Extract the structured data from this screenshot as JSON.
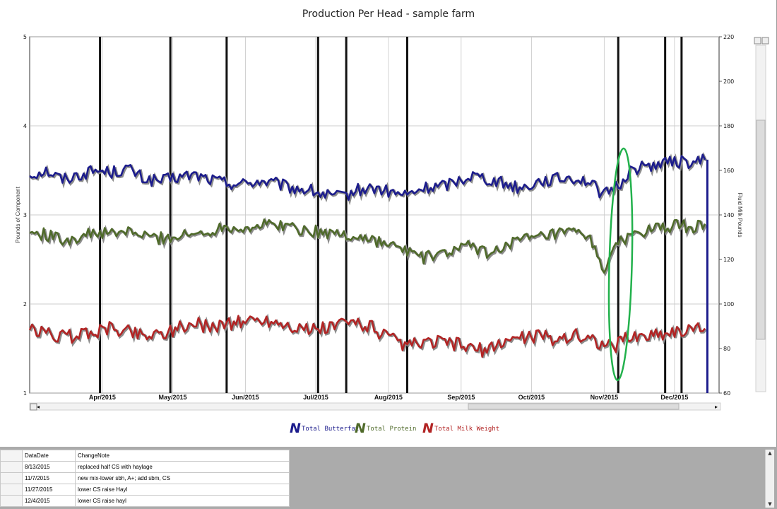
{
  "chart_data": {
    "type": "line",
    "title": "Production Per Head - sample farm",
    "ylabel_left": "Pounds of Component",
    "ylabel_right": "Fluid Milk Pounds",
    "y_left_range": [
      1,
      5
    ],
    "y_right_range": [
      60,
      220
    ],
    "y_left_ticks": [
      "1",
      "2",
      "3",
      "4",
      "5"
    ],
    "y_right_ticks": [
      "60",
      "80",
      "100",
      "120",
      "140",
      "160",
      "180",
      "200",
      "220"
    ],
    "x_range": [
      "2015-03-01",
      "2015-12-20"
    ],
    "x_ticks": [
      {
        "label": "Apr/2015",
        "date": "2015-04-01"
      },
      {
        "label": "May/2015",
        "date": "2015-05-01"
      },
      {
        "label": "Jun/2015",
        "date": "2015-06-01"
      },
      {
        "label": "Jul/2015",
        "date": "2015-07-01"
      },
      {
        "label": "Aug/2015",
        "date": "2015-08-01"
      },
      {
        "label": "Sep/2015",
        "date": "2015-09-01"
      },
      {
        "label": "Oct/2015",
        "date": "2015-10-01"
      },
      {
        "label": "Nov/2015",
        "date": "2015-11-01"
      },
      {
        "label": "Dec/2015",
        "date": "2015-12-01"
      }
    ],
    "grid": true,
    "legend_position": "bottom-center",
    "event_markers": [
      "2015-03-31",
      "2015-04-30",
      "2015-05-24",
      "2015-07-02",
      "2015-07-14",
      "2015-08-09",
      "2015-11-07",
      "2015-11-27",
      "2015-12-04"
    ],
    "series": [
      {
        "name": "Total Butterfat",
        "axis": "left",
        "color": "#1c1c8c",
        "points": [
          [
            "2015-03-01",
            3.45
          ],
          [
            "2015-03-08",
            3.5
          ],
          [
            "2015-03-15",
            3.4
          ],
          [
            "2015-03-22",
            3.45
          ],
          [
            "2015-03-29",
            3.5
          ],
          [
            "2015-04-05",
            3.48
          ],
          [
            "2015-04-12",
            3.52
          ],
          [
            "2015-04-19",
            3.4
          ],
          [
            "2015-04-26",
            3.38
          ],
          [
            "2015-05-03",
            3.42
          ],
          [
            "2015-05-10",
            3.45
          ],
          [
            "2015-05-17",
            3.4
          ],
          [
            "2015-05-24",
            3.36
          ],
          [
            "2015-05-31",
            3.35
          ],
          [
            "2015-06-07",
            3.38
          ],
          [
            "2015-06-14",
            3.35
          ],
          [
            "2015-06-21",
            3.3
          ],
          [
            "2015-06-28",
            3.28
          ],
          [
            "2015-07-05",
            3.22
          ],
          [
            "2015-07-12",
            3.2
          ],
          [
            "2015-07-19",
            3.28
          ],
          [
            "2015-07-26",
            3.3
          ],
          [
            "2015-08-02",
            3.25
          ],
          [
            "2015-08-09",
            3.22
          ],
          [
            "2015-08-16",
            3.3
          ],
          [
            "2015-08-23",
            3.32
          ],
          [
            "2015-08-30",
            3.38
          ],
          [
            "2015-09-06",
            3.45
          ],
          [
            "2015-09-13",
            3.4
          ],
          [
            "2015-09-20",
            3.35
          ],
          [
            "2015-09-27",
            3.3
          ],
          [
            "2015-10-04",
            3.38
          ],
          [
            "2015-10-11",
            3.4
          ],
          [
            "2015-10-18",
            3.42
          ],
          [
            "2015-10-25",
            3.38
          ],
          [
            "2015-11-01",
            3.22
          ],
          [
            "2015-11-05",
            3.3
          ],
          [
            "2015-11-08",
            3.35
          ],
          [
            "2015-11-12",
            3.5
          ],
          [
            "2015-11-19",
            3.55
          ],
          [
            "2015-11-26",
            3.58
          ],
          [
            "2015-12-03",
            3.6
          ],
          [
            "2015-12-10",
            3.58
          ],
          [
            "2015-12-14",
            3.62
          ]
        ]
      },
      {
        "name": "Total Protein",
        "axis": "left",
        "color": "#4f6a2a",
        "points": [
          [
            "2015-03-01",
            2.8
          ],
          [
            "2015-03-08",
            2.78
          ],
          [
            "2015-03-15",
            2.72
          ],
          [
            "2015-03-22",
            2.75
          ],
          [
            "2015-03-29",
            2.8
          ],
          [
            "2015-04-05",
            2.78
          ],
          [
            "2015-04-12",
            2.82
          ],
          [
            "2015-04-19",
            2.76
          ],
          [
            "2015-04-26",
            2.74
          ],
          [
            "2015-05-03",
            2.76
          ],
          [
            "2015-05-10",
            2.78
          ],
          [
            "2015-05-17",
            2.82
          ],
          [
            "2015-05-24",
            2.88
          ],
          [
            "2015-05-31",
            2.85
          ],
          [
            "2015-06-07",
            2.88
          ],
          [
            "2015-06-14",
            2.9
          ],
          [
            "2015-06-21",
            2.86
          ],
          [
            "2015-06-28",
            2.82
          ],
          [
            "2015-07-05",
            2.8
          ],
          [
            "2015-07-12",
            2.78
          ],
          [
            "2015-07-19",
            2.75
          ],
          [
            "2015-07-26",
            2.72
          ],
          [
            "2015-08-02",
            2.65
          ],
          [
            "2015-08-09",
            2.6
          ],
          [
            "2015-08-16",
            2.52
          ],
          [
            "2015-08-23",
            2.55
          ],
          [
            "2015-08-30",
            2.62
          ],
          [
            "2015-09-06",
            2.65
          ],
          [
            "2015-09-13",
            2.55
          ],
          [
            "2015-09-20",
            2.68
          ],
          [
            "2015-09-27",
            2.72
          ],
          [
            "2015-10-04",
            2.74
          ],
          [
            "2015-10-11",
            2.78
          ],
          [
            "2015-10-18",
            2.8
          ],
          [
            "2015-10-25",
            2.76
          ],
          [
            "2015-11-01",
            2.4
          ],
          [
            "2015-11-05",
            2.58
          ],
          [
            "2015-11-08",
            2.7
          ],
          [
            "2015-11-12",
            2.78
          ],
          [
            "2015-11-19",
            2.82
          ],
          [
            "2015-11-26",
            2.85
          ],
          [
            "2015-12-03",
            2.88
          ],
          [
            "2015-12-10",
            2.86
          ],
          [
            "2015-12-14",
            2.9
          ]
        ]
      },
      {
        "name": "Total Milk Weight",
        "axis": "right",
        "color": "#b22424",
        "points": [
          [
            "2015-03-01",
            88
          ],
          [
            "2015-03-08",
            87
          ],
          [
            "2015-03-15",
            85
          ],
          [
            "2015-03-22",
            86
          ],
          [
            "2015-03-29",
            88
          ],
          [
            "2015-04-05",
            89
          ],
          [
            "2015-04-12",
            88
          ],
          [
            "2015-04-19",
            86
          ],
          [
            "2015-04-26",
            87
          ],
          [
            "2015-05-03",
            89
          ],
          [
            "2015-05-10",
            91
          ],
          [
            "2015-05-17",
            90
          ],
          [
            "2015-05-24",
            91
          ],
          [
            "2015-05-31",
            92
          ],
          [
            "2015-06-07",
            93
          ],
          [
            "2015-06-14",
            92
          ],
          [
            "2015-06-21",
            90
          ],
          [
            "2015-06-28",
            88
          ],
          [
            "2015-07-05",
            89
          ],
          [
            "2015-07-12",
            91
          ],
          [
            "2015-07-19",
            92
          ],
          [
            "2015-07-26",
            89
          ],
          [
            "2015-08-02",
            84
          ],
          [
            "2015-08-09",
            81
          ],
          [
            "2015-08-16",
            82
          ],
          [
            "2015-08-23",
            83
          ],
          [
            "2015-08-30",
            82
          ],
          [
            "2015-09-06",
            80
          ],
          [
            "2015-09-13",
            79
          ],
          [
            "2015-09-20",
            84
          ],
          [
            "2015-09-27",
            85
          ],
          [
            "2015-10-04",
            86
          ],
          [
            "2015-10-11",
            84
          ],
          [
            "2015-10-18",
            86
          ],
          [
            "2015-10-25",
            85
          ],
          [
            "2015-11-01",
            82
          ],
          [
            "2015-11-05",
            80
          ],
          [
            "2015-11-08",
            84
          ],
          [
            "2015-11-12",
            85
          ],
          [
            "2015-11-19",
            86
          ],
          [
            "2015-11-26",
            87
          ],
          [
            "2015-12-03",
            88
          ],
          [
            "2015-12-10",
            88
          ],
          [
            "2015-12-14",
            89
          ]
        ]
      }
    ]
  },
  "legend": [
    {
      "label": "Total Butterfat",
      "color": "#1c1c8c"
    },
    {
      "label": "Total Protein",
      "color": "#4f6a2a"
    },
    {
      "label": "Total Milk Weight",
      "color": "#b22424"
    }
  ],
  "grid": {
    "columns": [
      "DataDate",
      "ChangeNote"
    ],
    "rows": [
      [
        "8/13/2015",
        "replaced half CS with haylage"
      ],
      [
        "11/7/2015",
        "new mix-lower sbh, A+; add sbm, CS"
      ],
      [
        "11/27/2015",
        "lower CS raise Hayl"
      ],
      [
        "12/4/2015",
        "lower CS raise hayl"
      ]
    ]
  },
  "colors": {
    "annotation_ellipse": "#22b14c",
    "event_marker": "#111111"
  }
}
